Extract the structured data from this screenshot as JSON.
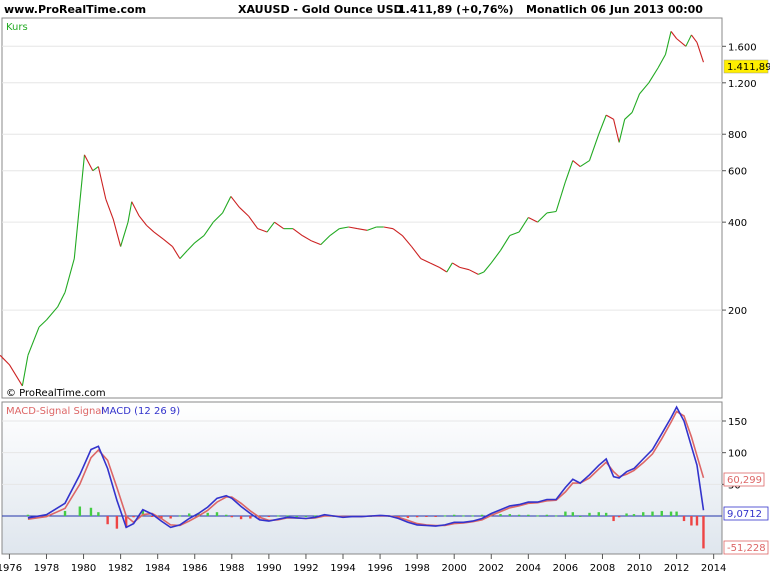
{
  "header": {
    "site": "www.ProRealTime.com",
    "instrument": "XAUUSD - Gold Ounce USD",
    "price_change": "1.411,89 (+0,76%)",
    "period_date": "Monatlich  06 Jun 2013 00:00"
  },
  "colors": {
    "up": "#22aa22",
    "down": "#cc2222",
    "macd": "#3333cc",
    "signal": "#dd6666",
    "hist_pos": "#44cc44",
    "hist_neg": "#ee4444",
    "price_badge": "#ffee00",
    "grid": "#e6e6e6"
  },
  "upper_panel": {
    "label": "Kurs",
    "watermark": "© ProRealTime.com",
    "current_price_label": "1.411,89"
  },
  "lower_panel": {
    "legend_signal": "MACD-Signal Signal",
    "legend_macd": "MACD (12 26 9)",
    "signal_value_label": "60,299",
    "macd_value_label": "9,0712",
    "hist_value_label": "-51,228"
  },
  "chart_data": [
    {
      "type": "line",
      "title": "XAUUSD - Gold Ounce USD",
      "scale": "log",
      "ylim": [
        100,
        2000
      ],
      "y_ticks": [
        200,
        400,
        600,
        800,
        1200,
        1600
      ],
      "y_tick_labels": [
        "200",
        "400",
        "600",
        "800",
        "1.200",
        "1.600"
      ],
      "x_tick_labels": [
        "1976",
        "1978",
        "1980",
        "1982",
        "1984",
        "1986",
        "1988",
        "1990",
        "1992",
        "1994",
        "1996",
        "1998",
        "2000",
        "2002",
        "2004",
        "2006",
        "2008",
        "2010",
        "2012",
        "2014"
      ],
      "series": [
        {
          "x": [
            1975.5,
            1976.0,
            1976.7,
            1977.0,
            1977.6,
            1978.0,
            1978.6,
            1979.0,
            1979.5,
            1980.05,
            1980.5,
            1980.8,
            1981.2,
            1981.6,
            1982.0,
            1982.4,
            1982.6,
            1983.0,
            1983.4,
            1983.8,
            1984.3,
            1984.8,
            1985.2,
            1985.6,
            1986.0,
            1986.5,
            1987.0,
            1987.5,
            1987.95,
            1988.4,
            1988.9,
            1989.4,
            1989.9,
            1990.3,
            1990.8,
            1991.3,
            1991.8,
            1992.3,
            1992.8,
            1993.3,
            1993.8,
            1994.3,
            1994.8,
            1995.3,
            1995.8,
            1996.2,
            1996.7,
            1997.2,
            1997.7,
            1998.2,
            1998.7,
            1999.2,
            1999.6,
            1999.9,
            2000.3,
            2000.8,
            2001.3,
            2001.6,
            2002.0,
            2002.5,
            2003.0,
            2003.5,
            2004.0,
            2004.5,
            2005.0,
            2005.5,
            2006.0,
            2006.4,
            2006.8,
            2007.3,
            2007.8,
            2008.2,
            2008.6,
            2008.9,
            2009.2,
            2009.6,
            2010.0,
            2010.5,
            2011.0,
            2011.4,
            2011.7,
            2012.0,
            2012.5,
            2012.8,
            2013.1,
            2013.45
          ],
          "values": [
            140,
            130,
            110,
            140,
            175,
            185,
            205,
            230,
            300,
            680,
            600,
            620,
            480,
            410,
            330,
            400,
            470,
            420,
            390,
            370,
            350,
            330,
            300,
            320,
            340,
            360,
            400,
            430,
            490,
            450,
            420,
            380,
            370,
            400,
            380,
            380,
            360,
            345,
            335,
            360,
            380,
            385,
            380,
            375,
            385,
            385,
            380,
            360,
            330,
            300,
            290,
            280,
            270,
            290,
            280,
            275,
            265,
            270,
            290,
            320,
            360,
            370,
            415,
            400,
            430,
            435,
            550,
            650,
            620,
            650,
            800,
            930,
            900,
            750,
            900,
            950,
            1100,
            1200,
            1350,
            1500,
            1800,
            1700,
            1600,
            1750,
            1650,
            1411.89
          ]
        }
      ]
    },
    {
      "type": "line",
      "title": "MACD (12 26 9)",
      "ylim": [
        -60,
        180
      ],
      "y_ticks": [
        50,
        100,
        150
      ],
      "y_tick_labels": [
        "50",
        "100",
        "150"
      ],
      "series": [
        {
          "name": "MACD (12 26 9)",
          "x": [
            1977.0,
            1978.0,
            1979.0,
            1979.8,
            1980.4,
            1980.8,
            1981.3,
            1981.8,
            1982.3,
            1982.7,
            1983.2,
            1983.7,
            1984.2,
            1984.7,
            1985.2,
            1985.7,
            1986.2,
            1986.7,
            1987.2,
            1987.7,
            1988.0,
            1988.5,
            1989.0,
            1989.5,
            1990.0,
            1990.5,
            1991.0,
            1991.5,
            1992.0,
            1992.5,
            1993.0,
            1993.5,
            1994.0,
            1994.5,
            1995.0,
            1995.5,
            1996.0,
            1996.5,
            1997.0,
            1997.5,
            1998.0,
            1998.5,
            1999.0,
            1999.5,
            2000.0,
            2000.5,
            2001.0,
            2001.5,
            2002.0,
            2002.5,
            2003.0,
            2003.5,
            2004.0,
            2004.5,
            2005.0,
            2005.5,
            2006.0,
            2006.4,
            2006.8,
            2007.3,
            2007.8,
            2008.2,
            2008.6,
            2008.9,
            2009.3,
            2009.7,
            2010.2,
            2010.7,
            2011.2,
            2011.7,
            2012.0,
            2012.4,
            2012.8,
            2013.1,
            2013.45
          ],
          "values": [
            -3,
            2,
            20,
            65,
            105,
            110,
            75,
            25,
            -18,
            -12,
            10,
            3,
            -8,
            -18,
            -14,
            -4,
            4,
            14,
            28,
            32,
            28,
            15,
            4,
            -6,
            -8,
            -5,
            -2,
            -3,
            -4,
            -2,
            2,
            0,
            -2,
            -1,
            -1,
            0,
            1,
            0,
            -4,
            -10,
            -14,
            -15,
            -16,
            -14,
            -10,
            -10,
            -8,
            -4,
            4,
            10,
            16,
            18,
            22,
            22,
            26,
            26,
            45,
            58,
            52,
            65,
            80,
            90,
            62,
            60,
            70,
            75,
            90,
            105,
            130,
            155,
            172,
            150,
            110,
            80,
            9.07
          ]
        },
        {
          "name": "MACD-Signal Signal",
          "x": [
            1977.0,
            1978.0,
            1979.0,
            1979.8,
            1980.4,
            1980.8,
            1981.3,
            1981.8,
            1982.3,
            1982.7,
            1983.2,
            1983.7,
            1984.2,
            1984.7,
            1985.2,
            1985.7,
            1986.2,
            1986.7,
            1987.2,
            1987.7,
            1988.0,
            1988.5,
            1989.0,
            1989.5,
            1990.0,
            1990.5,
            1991.0,
            1991.5,
            1992.0,
            1992.5,
            1993.0,
            1993.5,
            1994.0,
            1994.5,
            1995.0,
            1995.5,
            1996.0,
            1996.5,
            1997.0,
            1997.5,
            1998.0,
            1998.5,
            1999.0,
            1999.5,
            2000.0,
            2000.5,
            2001.0,
            2001.5,
            2002.0,
            2002.5,
            2003.0,
            2003.5,
            2004.0,
            2004.5,
            2005.0,
            2005.5,
            2006.0,
            2006.4,
            2006.8,
            2007.3,
            2007.8,
            2008.2,
            2008.6,
            2008.9,
            2009.3,
            2009.7,
            2010.2,
            2010.7,
            2011.2,
            2011.7,
            2012.0,
            2012.4,
            2012.8,
            2013.1,
            2013.45
          ],
          "values": [
            -5,
            -1,
            12,
            50,
            92,
            104,
            88,
            45,
            0,
            -10,
            2,
            4,
            -4,
            -14,
            -15,
            -8,
            0,
            9,
            22,
            30,
            30,
            20,
            8,
            -2,
            -7,
            -6,
            -3,
            -3,
            -4,
            -3,
            0,
            0,
            -1,
            -1,
            -1,
            0,
            0,
            0,
            -2,
            -7,
            -12,
            -14,
            -15,
            -15,
            -12,
            -11,
            -9,
            -6,
            1,
            7,
            13,
            16,
            20,
            21,
            24,
            25,
            38,
            52,
            52,
            60,
            74,
            85,
            70,
            62,
            66,
            72,
            84,
            98,
            122,
            148,
            165,
            158,
            125,
            95,
            60.3
          ]
        }
      ]
    },
    {
      "type": "bar",
      "title": "MACD-Signal histogram",
      "x": [
        1977.0,
        1978.0,
        1979.0,
        1979.8,
        1980.4,
        1980.8,
        1981.3,
        1981.8,
        1982.3,
        1982.7,
        1983.2,
        1983.7,
        1984.2,
        1984.7,
        1985.2,
        1985.7,
        1986.2,
        1986.7,
        1987.2,
        1987.7,
        1988.0,
        1988.5,
        1989.0,
        1989.5,
        1990.0,
        1990.5,
        1991.0,
        1991.5,
        1992.0,
        1992.5,
        1993.0,
        1993.5,
        1994.0,
        1994.5,
        1995.0,
        1995.5,
        1996.0,
        1996.5,
        1997.0,
        1997.5,
        1998.0,
        1998.5,
        1999.0,
        1999.5,
        2000.0,
        2000.5,
        2001.0,
        2001.5,
        2002.0,
        2002.5,
        2003.0,
        2003.5,
        2004.0,
        2004.5,
        2005.0,
        2005.5,
        2006.0,
        2006.4,
        2006.8,
        2007.3,
        2007.8,
        2008.2,
        2008.6,
        2008.9,
        2009.3,
        2009.7,
        2010.2,
        2010.7,
        2011.2,
        2011.7,
        2012.0,
        2012.4,
        2012.8,
        2013.1,
        2013.45
      ],
      "values": [
        2,
        3,
        8,
        15,
        13,
        6,
        -13,
        -20,
        -18,
        -2,
        8,
        -1,
        -4,
        -4,
        1,
        4,
        4,
        5,
        6,
        2,
        -2,
        -5,
        -4,
        -4,
        -1,
        1,
        1,
        0,
        0,
        1,
        2,
        0,
        -1,
        0,
        0,
        0,
        1,
        0,
        -2,
        -3,
        -2,
        -1,
        -1,
        1,
        2,
        1,
        1,
        2,
        3,
        3,
        3,
        2,
        2,
        1,
        2,
        1,
        7,
        6,
        0,
        5,
        6,
        5,
        -8,
        -2,
        4,
        3,
        6,
        7,
        8,
        7,
        7,
        -8,
        -15,
        -15,
        -51.2
      ]
    }
  ]
}
